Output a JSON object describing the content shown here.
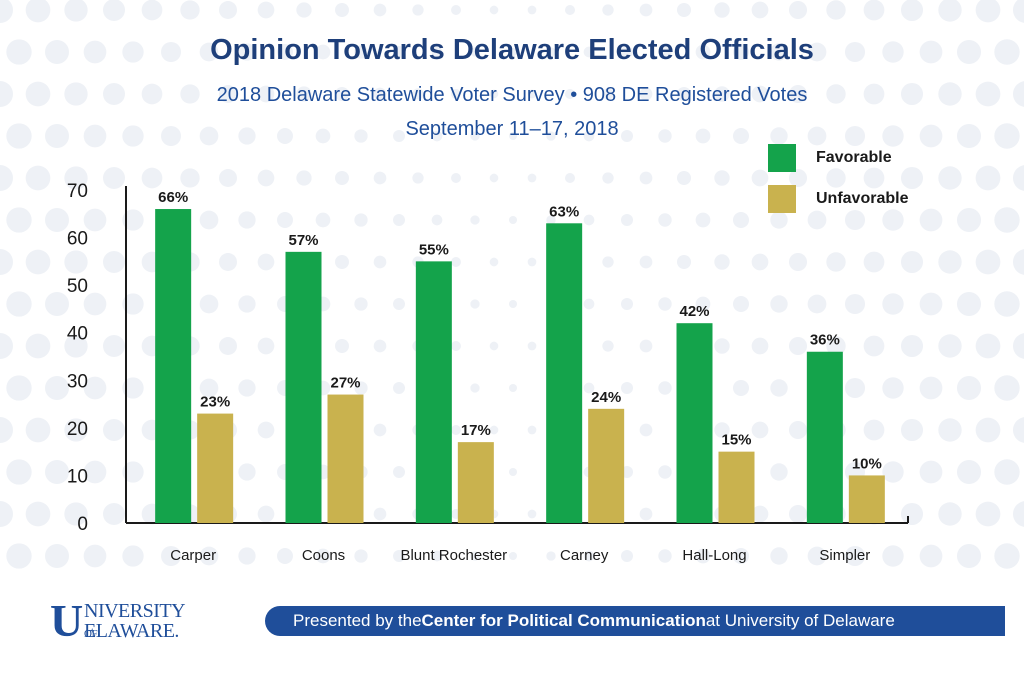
{
  "header": {
    "title": "Opinion Towards Delaware Elected Officials",
    "subtitle1": "2018 Delaware Statewide Voter Survey • 908 DE Registered Votes",
    "subtitle2": "September 11–17, 2018"
  },
  "footer": {
    "logo_u": "U",
    "logo_niversity": "NIVERSITY",
    "logo_of": "OF",
    "logo_delaware": "ELAWARE.",
    "banner_pre": "Presented by the ",
    "banner_bold": "Center for Political Communication",
    "banner_post": " at University of Delaware"
  },
  "colors": {
    "favorable": "#14a34b",
    "unfavorable": "#c9b24e",
    "accent": "#1f4e9a",
    "axis": "#1a1a1a"
  },
  "chart_data": {
    "type": "bar",
    "title": "Opinion Towards Delaware Elected Officials",
    "categories": [
      "Carper",
      "Coons",
      "Blunt Rochester",
      "Carney",
      "Hall-Long",
      "Simpler"
    ],
    "series": [
      {
        "name": "Favorable",
        "values": [
          66,
          57,
          55,
          63,
          42,
          36
        ],
        "labels": [
          "66%",
          "57%",
          "55%",
          "63%",
          "42%",
          "36%"
        ]
      },
      {
        "name": "Unfavorable",
        "values": [
          23,
          27,
          17,
          24,
          15,
          10
        ],
        "labels": [
          "23%",
          "27%",
          "17%",
          "24%",
          "15%",
          "10%"
        ]
      }
    ],
    "yticks": [
      "0",
      "10",
      "20",
      "30",
      "40",
      "50",
      "60",
      "70"
    ],
    "ylim": [
      0,
      70
    ],
    "grid": false,
    "legend": "top-right"
  }
}
